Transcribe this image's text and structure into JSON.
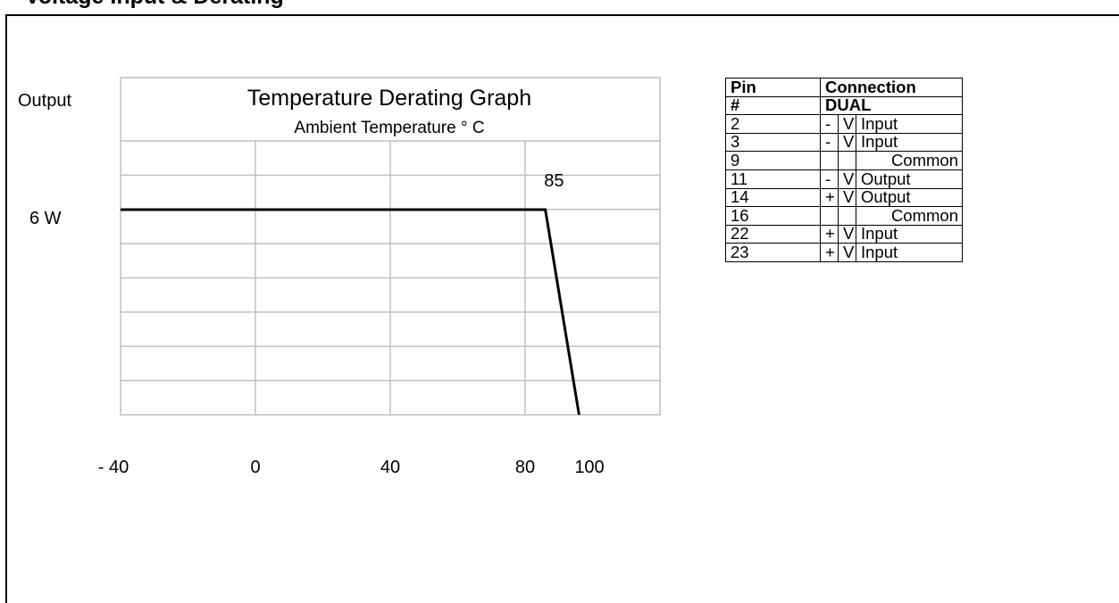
{
  "page": {
    "title": "Voltage Input & Derating"
  },
  "chart_data": {
    "type": "line",
    "title": "Temperature Derating Graph",
    "subtitle": "Ambient Temperature ° C",
    "ylabel": "Output",
    "xlabel": "",
    "x_ticks": [
      -40,
      0,
      40,
      80,
      100
    ],
    "x_tick_labels": [
      "- 40",
      "0",
      "40",
      "80",
      "100"
    ],
    "xlim": [
      -40,
      120
    ],
    "y_tick_labels": [
      "6 W"
    ],
    "ylim": [
      0,
      6.5
    ],
    "grid": true,
    "series": [
      {
        "x": [
          -40,
          86,
          96
        ],
        "y": [
          6,
          6,
          0
        ]
      }
    ],
    "annotations": [
      {
        "text": "85",
        "x": 87,
        "y": 6.55
      }
    ]
  },
  "pin_table": {
    "header": {
      "col1": "Pin",
      "col2": "Connection"
    },
    "subheader": {
      "col1": "#",
      "col2": "DUAL"
    },
    "rows": [
      {
        "pin": "2",
        "sign": "-",
        "v": "V",
        "function": "Input"
      },
      {
        "pin": "3",
        "sign": "-",
        "v": "V",
        "function": "Input"
      },
      {
        "pin": "9",
        "sign": "",
        "v": "",
        "function": "Common"
      },
      {
        "pin": "11",
        "sign": "-",
        "v": "V",
        "function": "Output"
      },
      {
        "pin": "14",
        "sign": "+",
        "v": "V",
        "function": "Output"
      },
      {
        "pin": "16",
        "sign": "",
        "v": "",
        "function": "Common"
      },
      {
        "pin": "22",
        "sign": "+",
        "v": "V",
        "function": "Input"
      },
      {
        "pin": "23",
        "sign": "+",
        "v": "V",
        "function": "Input"
      }
    ]
  }
}
